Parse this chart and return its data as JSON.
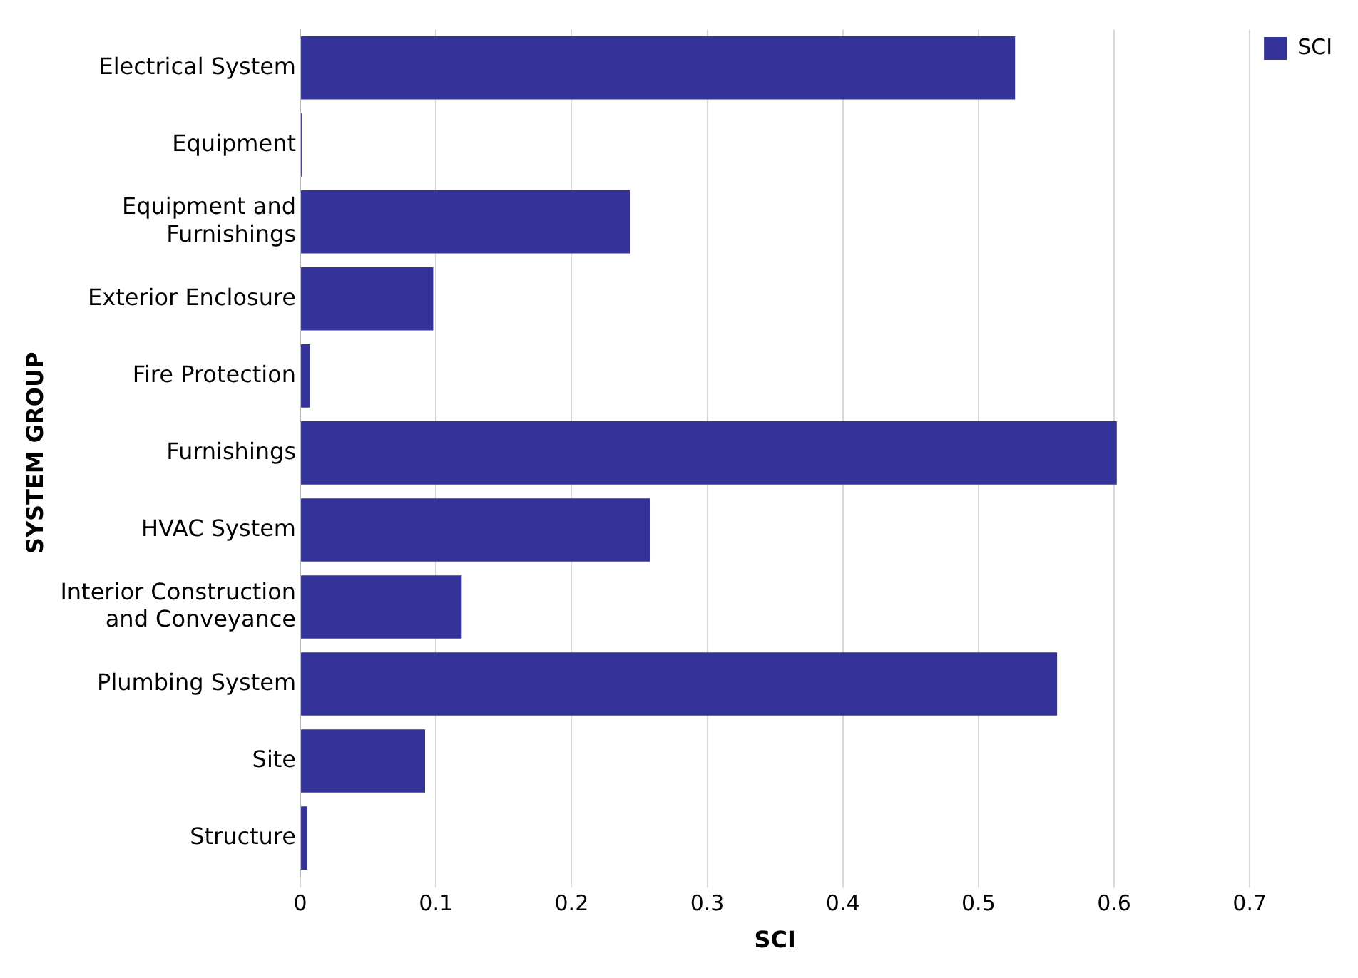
{
  "chart_data": {
    "type": "bar",
    "orientation": "horizontal",
    "xlabel": "SCI",
    "ylabel": "SYSTEM GROUP",
    "categories": [
      "Electrical System",
      "Equipment",
      "Equipment and Furnishings",
      "Exterior Enclosure",
      "Fire Protection",
      "Furnishings",
      "HVAC System",
      "Interior Construction and Conveyance",
      "Plumbing System",
      "Site",
      "Structure"
    ],
    "series": [
      {
        "name": "SCI",
        "color": "#333399",
        "values": [
          0.527,
          0.001,
          0.243,
          0.098,
          0.007,
          0.602,
          0.258,
          0.119,
          0.558,
          0.092,
          0.005
        ]
      }
    ],
    "xlim": [
      0,
      0.7
    ],
    "xticks": [
      0,
      0.1,
      0.2,
      0.3,
      0.4,
      0.5,
      0.6,
      0.7
    ],
    "grid": "x",
    "legend": "top right"
  }
}
